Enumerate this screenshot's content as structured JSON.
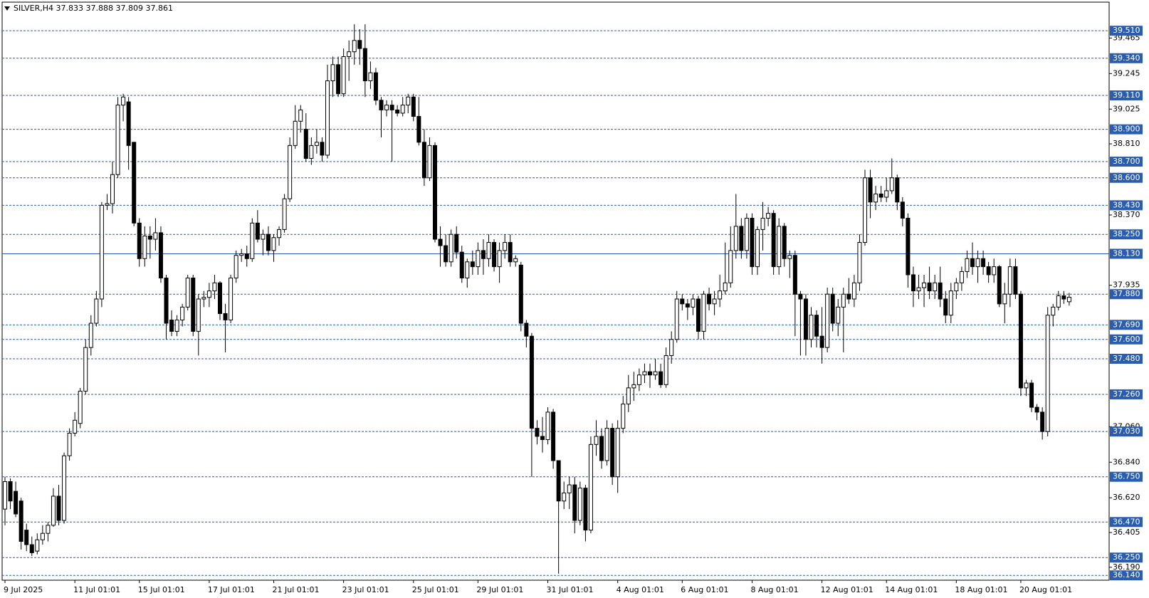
{
  "chart_data": {
    "type": "candlestick",
    "title": "SILVER,H4  37.833 37.888 37.809 37.861",
    "ylim": [
      36.11,
      39.687
    ],
    "yticks": [
      {
        "value": 39.465,
        "label": "39.465"
      },
      {
        "value": 39.245,
        "label": "39.245"
      },
      {
        "value": 39.025,
        "label": "39.025"
      },
      {
        "value": 38.81,
        "label": "38.810"
      },
      {
        "value": 38.37,
        "label": "38.370"
      },
      {
        "value": 37.935,
        "label": "37.935"
      },
      {
        "value": 37.06,
        "label": "37.060"
      },
      {
        "value": 36.84,
        "label": "36.840"
      },
      {
        "value": 36.62,
        "label": "36.620"
      },
      {
        "value": 36.405,
        "label": "36.405"
      },
      {
        "value": 36.19,
        "label": "36.190"
      }
    ],
    "levels": [
      {
        "value": 39.51,
        "label": "39.510"
      },
      {
        "value": 39.34,
        "label": "39.340"
      },
      {
        "value": 39.11,
        "label": "39.110"
      },
      {
        "value": 38.9,
        "label": "38.900"
      },
      {
        "value": 38.7,
        "label": "38.700"
      },
      {
        "value": 38.6,
        "label": "38.600"
      },
      {
        "value": 38.43,
        "label": "38.430"
      },
      {
        "value": 38.25,
        "label": "38.250"
      },
      {
        "value": 37.88,
        "label": "37.880"
      },
      {
        "value": 37.69,
        "label": "37.690"
      },
      {
        "value": 37.6,
        "label": "37.600"
      },
      {
        "value": 37.48,
        "label": "37.480"
      },
      {
        "value": 37.26,
        "label": "37.260"
      },
      {
        "value": 37.03,
        "label": "37.030"
      },
      {
        "value": 36.75,
        "label": "36.750"
      },
      {
        "value": 36.47,
        "label": "36.470"
      },
      {
        "value": 36.25,
        "label": "36.250"
      },
      {
        "value": 36.14,
        "label": "36.140"
      }
    ],
    "hline": {
      "value": 38.13,
      "label": "38.130"
    },
    "level_color": "#2a5db0",
    "up_color": "#ffffff",
    "down_color": "#000000",
    "categories": [
      "9 Jul 2025",
      null,
      null,
      null,
      null,
      null,
      null,
      null,
      null,
      null,
      null,
      null,
      null,
      "11 Jul 01:01",
      null,
      null,
      null,
      null,
      null,
      null,
      null,
      null,
      null,
      null,
      null,
      "15 Jul 01:01",
      null,
      null,
      null,
      null,
      null,
      null,
      null,
      null,
      null,
      null,
      null,
      null,
      "17 Jul 01:01",
      null,
      null,
      null,
      null,
      null,
      null,
      null,
      null,
      null,
      null,
      null,
      "21 Jul 01:01",
      null,
      null,
      null,
      null,
      null,
      null,
      null,
      null,
      null,
      null,
      null,
      null,
      "23 Jul 01:01",
      null,
      null,
      null,
      null,
      null,
      null,
      null,
      null,
      null,
      null,
      null,
      null,
      "25 Jul 01:01",
      null,
      null,
      null,
      null,
      null,
      null,
      null,
      null,
      null,
      null,
      null,
      "29 Jul 01:01",
      null,
      null,
      null,
      null,
      null,
      null,
      null,
      null,
      null,
      null,
      null,
      null,
      "31 Jul 01:01",
      null,
      null,
      null,
      null,
      null,
      null,
      null,
      null,
      null,
      null,
      null,
      null,
      "4 Aug 01:01",
      null,
      null,
      null,
      null,
      null,
      null,
      null,
      null,
      null,
      null,
      null,
      "6 Aug 01:01",
      null,
      null,
      null,
      null,
      null,
      null,
      null,
      null,
      null,
      null,
      null,
      null,
      "8 Aug 01:01",
      null,
      null,
      null,
      null,
      null,
      null,
      null,
      null,
      null,
      null,
      null,
      null,
      "12 Aug 01:01",
      null,
      null,
      null,
      null,
      null,
      null,
      null,
      null,
      null,
      null,
      null,
      "14 Aug 01:01",
      null,
      null,
      null,
      null,
      null,
      null,
      null,
      null,
      null,
      null,
      null,
      null,
      "18 Aug 01:01",
      null,
      null,
      null,
      null,
      null,
      null,
      null,
      null,
      null,
      null,
      null,
      "20 Aug 01:01",
      null,
      null,
      null,
      null,
      null,
      null,
      null,
      null,
      null
    ],
    "candles": [
      [
        36.55,
        36.75,
        36.45,
        36.72
      ],
      [
        36.72,
        36.74,
        36.55,
        36.6
      ],
      [
        36.66,
        36.72,
        36.5,
        36.52
      ],
      [
        36.6,
        36.62,
        36.3,
        36.35
      ],
      [
        36.42,
        36.46,
        36.29,
        36.33
      ],
      [
        36.33,
        36.38,
        36.26,
        36.28
      ],
      [
        36.29,
        36.4,
        36.27,
        36.36
      ],
      [
        36.36,
        36.45,
        36.33,
        36.4
      ],
      [
        36.4,
        36.47,
        36.35,
        36.45
      ],
      [
        36.45,
        36.68,
        36.44,
        36.63
      ],
      [
        36.63,
        36.7,
        36.45,
        36.48
      ],
      [
        36.48,
        36.9,
        36.46,
        36.88
      ],
      [
        36.88,
        37.05,
        36.85,
        37.02
      ],
      [
        37.02,
        37.15,
        37.0,
        37.1
      ],
      [
        37.08,
        37.3,
        37.05,
        37.28
      ],
      [
        37.28,
        37.6,
        37.26,
        37.55
      ],
      [
        37.55,
        37.75,
        37.5,
        37.7
      ],
      [
        37.7,
        37.9,
        37.68,
        37.85
      ],
      [
        37.85,
        38.45,
        37.8,
        38.43
      ],
      [
        38.43,
        38.5,
        38.4,
        38.44
      ],
      [
        38.44,
        38.7,
        38.38,
        38.62
      ],
      [
        38.62,
        39.1,
        38.6,
        39.05
      ],
      [
        39.05,
        39.12,
        38.95,
        39.1
      ],
      [
        39.07,
        39.1,
        38.65,
        38.8
      ],
      [
        38.82,
        38.82,
        38.3,
        38.32
      ],
      [
        38.32,
        38.35,
        38.05,
        38.1
      ],
      [
        38.1,
        38.3,
        38.05,
        38.24
      ],
      [
        38.24,
        38.3,
        38.1,
        38.22
      ],
      [
        38.22,
        38.35,
        38.15,
        38.26
      ],
      [
        38.26,
        38.3,
        37.95,
        37.98
      ],
      [
        37.98,
        38.0,
        37.6,
        37.7
      ],
      [
        37.72,
        37.78,
        37.62,
        37.65
      ],
      [
        37.65,
        37.75,
        37.62,
        37.72
      ],
      [
        37.72,
        37.82,
        37.68,
        37.8
      ],
      [
        37.8,
        38.0,
        37.78,
        37.98
      ],
      [
        37.98,
        38.0,
        37.62,
        37.65
      ],
      [
        37.65,
        37.88,
        37.5,
        37.85
      ],
      [
        37.85,
        37.9,
        37.8,
        37.86
      ],
      [
        37.86,
        37.95,
        37.8,
        37.9
      ],
      [
        37.9,
        38.0,
        37.85,
        37.95
      ],
      [
        37.95,
        37.96,
        37.72,
        37.76
      ],
      [
        37.76,
        37.82,
        37.52,
        37.72
      ],
      [
        37.72,
        38.0,
        37.7,
        37.98
      ],
      [
        37.98,
        38.15,
        37.95,
        38.12
      ],
      [
        38.12,
        38.16,
        38.08,
        38.13
      ],
      [
        38.13,
        38.18,
        38.05,
        38.1
      ],
      [
        38.1,
        38.35,
        38.08,
        38.32
      ],
      [
        38.32,
        38.4,
        38.2,
        38.22
      ],
      [
        38.22,
        38.28,
        38.12,
        38.25
      ],
      [
        38.25,
        38.3,
        38.12,
        38.15
      ],
      [
        38.15,
        38.25,
        38.08,
        38.23
      ],
      [
        38.23,
        38.3,
        38.18,
        38.28
      ],
      [
        38.28,
        38.5,
        38.26,
        38.47
      ],
      [
        38.47,
        38.85,
        38.45,
        38.8
      ],
      [
        38.8,
        39.05,
        38.78,
        38.95
      ],
      [
        38.95,
        39.05,
        38.88,
        39.02
      ],
      [
        38.9,
        39.0,
        38.7,
        38.72
      ],
      [
        38.72,
        38.85,
        38.68,
        38.8
      ],
      [
        38.8,
        38.9,
        38.75,
        38.82
      ],
      [
        38.82,
        38.85,
        38.7,
        38.74
      ],
      [
        38.74,
        39.3,
        38.72,
        39.2
      ],
      [
        39.2,
        39.35,
        39.1,
        39.3
      ],
      [
        39.3,
        39.35,
        39.1,
        39.12
      ],
      [
        39.12,
        39.4,
        39.1,
        39.35
      ],
      [
        39.35,
        39.45,
        39.2,
        39.38
      ],
      [
        39.38,
        39.55,
        39.3,
        39.45
      ],
      [
        39.45,
        39.52,
        39.3,
        39.4
      ],
      [
        39.4,
        39.55,
        39.1,
        39.2
      ],
      [
        39.2,
        39.32,
        39.15,
        39.25
      ],
      [
        39.25,
        39.28,
        39.05,
        39.08
      ],
      [
        39.08,
        39.1,
        38.85,
        39.02
      ],
      [
        39.02,
        39.08,
        38.98,
        39.05
      ],
      [
        39.05,
        39.08,
        38.7,
        39.02
      ],
      [
        39.02,
        39.05,
        38.98,
        39.0
      ],
      [
        39.0,
        39.1,
        38.98,
        39.05
      ],
      [
        39.05,
        39.12,
        39.0,
        39.1
      ],
      [
        39.1,
        39.12,
        38.95,
        38.98
      ],
      [
        38.98,
        39.1,
        38.8,
        38.82
      ],
      [
        38.82,
        38.9,
        38.55,
        38.6
      ],
      [
        38.6,
        38.85,
        38.58,
        38.8
      ],
      [
        38.8,
        38.82,
        38.2,
        38.22
      ],
      [
        38.22,
        38.3,
        38.05,
        38.18
      ],
      [
        38.18,
        38.25,
        38.05,
        38.08
      ],
      [
        38.08,
        38.28,
        38.05,
        38.25
      ],
      [
        38.25,
        38.3,
        38.1,
        38.14
      ],
      [
        38.14,
        38.18,
        37.95,
        37.98
      ],
      [
        37.98,
        38.1,
        37.92,
        38.08
      ],
      [
        38.08,
        38.15,
        38.0,
        38.05
      ],
      [
        38.05,
        38.2,
        38.0,
        38.15
      ],
      [
        38.15,
        38.22,
        38.0,
        38.1
      ],
      [
        38.1,
        38.25,
        38.05,
        38.2
      ],
      [
        38.2,
        38.22,
        38.02,
        38.05
      ],
      [
        38.05,
        38.2,
        37.95,
        38.15
      ],
      [
        38.15,
        38.25,
        38.1,
        38.2
      ],
      [
        38.2,
        38.25,
        38.05,
        38.08
      ],
      [
        38.08,
        38.12,
        38.05,
        38.1
      ],
      [
        38.06,
        38.08,
        37.65,
        37.7
      ],
      [
        37.7,
        37.72,
        37.55,
        37.62
      ],
      [
        37.62,
        37.64,
        36.75,
        37.05
      ],
      [
        37.05,
        37.1,
        36.95,
        37.0
      ],
      [
        37.0,
        37.12,
        36.9,
        36.98
      ],
      [
        36.98,
        37.18,
        36.95,
        37.15
      ],
      [
        37.15,
        37.17,
        36.8,
        36.85
      ],
      [
        36.85,
        36.85,
        36.15,
        36.6
      ],
      [
        36.6,
        36.72,
        36.55,
        36.65
      ],
      [
        36.65,
        36.75,
        36.55,
        36.7
      ],
      [
        36.7,
        36.75,
        36.4,
        36.48
      ],
      [
        36.48,
        36.72,
        36.45,
        36.68
      ],
      [
        36.68,
        36.7,
        36.35,
        36.42
      ],
      [
        36.42,
        37.0,
        36.4,
        36.95
      ],
      [
        36.95,
        37.1,
        36.88,
        37.0
      ],
      [
        37.0,
        37.05,
        36.8,
        36.85
      ],
      [
        36.85,
        37.1,
        36.82,
        37.05
      ],
      [
        37.05,
        37.08,
        36.7,
        36.75
      ],
      [
        36.75,
        37.1,
        36.65,
        37.05
      ],
      [
        37.05,
        37.25,
        37.02,
        37.2
      ],
      [
        37.2,
        37.38,
        37.15,
        37.3
      ],
      [
        37.3,
        37.4,
        37.22,
        37.32
      ],
      [
        37.32,
        37.42,
        37.28,
        37.38
      ],
      [
        37.38,
        37.45,
        37.33,
        37.4
      ],
      [
        37.4,
        37.45,
        37.3,
        37.38
      ],
      [
        37.38,
        37.48,
        37.35,
        37.4
      ],
      [
        37.4,
        37.45,
        37.3,
        37.32
      ],
      [
        37.32,
        37.55,
        37.3,
        37.5
      ],
      [
        37.5,
        37.65,
        37.45,
        37.6
      ],
      [
        37.6,
        37.9,
        37.58,
        37.85
      ],
      [
        37.85,
        37.88,
        37.78,
        37.82
      ],
      [
        37.82,
        37.85,
        37.72,
        37.8
      ],
      [
        37.8,
        37.88,
        37.75,
        37.85
      ],
      [
        37.85,
        37.87,
        37.6,
        37.65
      ],
      [
        37.65,
        37.9,
        37.6,
        37.88
      ],
      [
        37.88,
        37.92,
        37.78,
        37.82
      ],
      [
        37.82,
        37.9,
        37.75,
        37.85
      ],
      [
        37.85,
        38.0,
        37.8,
        37.9
      ],
      [
        37.9,
        38.2,
        37.88,
        37.95
      ],
      [
        37.95,
        38.3,
        37.92,
        38.15
      ],
      [
        38.15,
        38.5,
        38.1,
        38.3
      ],
      [
        38.3,
        38.35,
        38.1,
        38.15
      ],
      [
        38.15,
        38.38,
        38.1,
        38.35
      ],
      [
        38.35,
        38.38,
        38.0,
        38.05
      ],
      [
        38.05,
        38.3,
        38.0,
        38.28
      ],
      [
        38.28,
        38.45,
        38.15,
        38.35
      ],
      [
        38.35,
        38.42,
        38.3,
        38.38
      ],
      [
        38.38,
        38.4,
        38.0,
        38.05
      ],
      [
        38.05,
        38.35,
        38.0,
        38.3
      ],
      [
        38.3,
        38.32,
        38.05,
        38.1
      ],
      [
        38.1,
        38.15,
        37.98,
        38.12
      ],
      [
        38.12,
        38.15,
        37.62,
        37.88
      ],
      [
        37.88,
        37.9,
        37.5,
        37.85
      ],
      [
        37.85,
        37.88,
        37.5,
        37.6
      ],
      [
        37.6,
        37.8,
        37.55,
        37.75
      ],
      [
        37.75,
        37.78,
        37.55,
        37.62
      ],
      [
        37.62,
        37.8,
        37.45,
        37.55
      ],
      [
        37.55,
        37.92,
        37.52,
        37.88
      ],
      [
        37.88,
        37.92,
        37.65,
        37.7
      ],
      [
        37.7,
        37.85,
        37.62,
        37.8
      ],
      [
        37.8,
        37.92,
        37.52,
        37.88
      ],
      [
        37.88,
        37.98,
        37.82,
        37.85
      ],
      [
        37.85,
        38.0,
        37.8,
        37.95
      ],
      [
        37.95,
        38.25,
        37.9,
        38.2
      ],
      [
        38.2,
        38.65,
        38.18,
        38.6
      ],
      [
        38.6,
        38.65,
        38.35,
        38.45
      ],
      [
        38.45,
        38.55,
        38.4,
        38.5
      ],
      [
        38.5,
        38.55,
        38.45,
        38.48
      ],
      [
        38.48,
        38.6,
        38.45,
        38.52
      ],
      [
        38.52,
        38.72,
        38.5,
        38.6
      ],
      [
        38.6,
        38.62,
        38.4,
        38.45
      ],
      [
        38.45,
        38.48,
        38.3,
        38.35
      ],
      [
        38.35,
        38.38,
        37.92,
        38.0
      ],
      [
        38.0,
        38.05,
        37.8,
        37.9
      ],
      [
        37.9,
        38.0,
        37.85,
        37.92
      ],
      [
        37.92,
        38.0,
        37.8,
        37.95
      ],
      [
        37.95,
        38.05,
        37.85,
        37.9
      ],
      [
        37.9,
        38.0,
        37.85,
        37.95
      ],
      [
        37.95,
        38.05,
        37.8,
        37.85
      ],
      [
        37.85,
        37.9,
        37.7,
        37.75
      ],
      [
        37.75,
        37.95,
        37.7,
        37.9
      ],
      [
        37.9,
        37.98,
        37.85,
        37.95
      ],
      [
        37.95,
        38.05,
        37.9,
        38.02
      ],
      [
        38.02,
        38.15,
        37.98,
        38.1
      ],
      [
        38.1,
        38.2,
        38.0,
        38.05
      ],
      [
        38.05,
        38.15,
        37.95,
        38.1
      ],
      [
        38.1,
        38.15,
        38.0,
        38.05
      ],
      [
        38.05,
        38.08,
        37.95,
        38.0
      ],
      [
        38.0,
        38.1,
        37.95,
        38.05
      ],
      [
        38.05,
        38.06,
        37.8,
        37.82
      ],
      [
        37.82,
        37.95,
        37.7,
        37.88
      ],
      [
        37.88,
        38.1,
        37.8,
        38.05
      ],
      [
        38.05,
        38.1,
        37.85,
        37.88
      ],
      [
        37.88,
        37.9,
        37.25,
        37.3
      ],
      [
        37.3,
        37.35,
        37.25,
        37.33
      ],
      [
        37.33,
        37.35,
        37.15,
        37.18
      ],
      [
        37.18,
        37.2,
        37.1,
        37.15
      ],
      [
        37.15,
        37.18,
        36.98,
        37.03
      ],
      [
        37.03,
        37.8,
        37.0,
        37.75
      ],
      [
        37.75,
        37.82,
        37.68,
        37.8
      ],
      [
        37.8,
        37.9,
        37.78,
        37.87
      ],
      [
        37.87,
        37.9,
        37.82,
        37.85
      ],
      [
        37.833,
        37.888,
        37.809,
        37.861
      ]
    ]
  }
}
